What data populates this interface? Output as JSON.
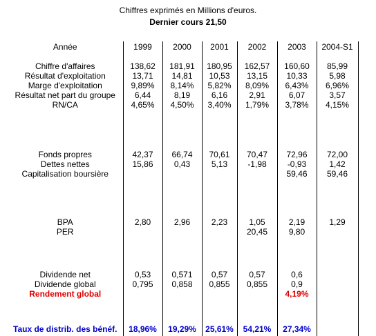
{
  "header": {
    "subtitle": "Chiffres exprimés en Millions d'euros.",
    "cours": "Dernier cours  21,50"
  },
  "table": {
    "columns": [
      "Année",
      "1999",
      "2000",
      "2001",
      "2002",
      "2003",
      "2004-S1"
    ],
    "groups": [
      {
        "labels": [
          "Chiffre d'affaires",
          "Résultat d'exploitation",
          "Marge d'exploitation",
          "Résultat net part du groupe",
          "RN/CA"
        ],
        "values": [
          [
            "138,62",
            "13,71",
            "9,89%",
            "6,44",
            "4,65%"
          ],
          [
            "181,91",
            "14,81",
            "8,14%",
            "8,19",
            "4,50%"
          ],
          [
            "180,95",
            "10,53",
            "5,82%",
            "6,16",
            "3,40%"
          ],
          [
            "162,57",
            "13,15",
            "8,09%",
            "2,91",
            "1,79%"
          ],
          [
            "160,60",
            "10,33",
            "6,43%",
            "6,07",
            "3,78%"
          ],
          [
            "85,99",
            "5,98",
            "6,96%",
            "3,57",
            "4,15%"
          ]
        ]
      },
      {
        "labels": [
          "Fonds propres",
          "Dettes nettes",
          "Capitalisation boursière"
        ],
        "values": [
          [
            "42,37",
            "15,86",
            ""
          ],
          [
            "66,74",
            "0,43",
            ""
          ],
          [
            "70,61",
            "5,13",
            ""
          ],
          [
            "70,47",
            "-1,98",
            ""
          ],
          [
            "72,96",
            "-0,93",
            "59,46"
          ],
          [
            "72,00",
            "1,42",
            "59,46"
          ]
        ]
      },
      {
        "labels": [
          "BPA",
          "PER"
        ],
        "values": [
          [
            "2,80",
            ""
          ],
          [
            "2,96",
            ""
          ],
          [
            "2,23",
            ""
          ],
          [
            "1,05",
            "20,45"
          ],
          [
            "2,19",
            "9,80"
          ],
          [
            "1,29",
            ""
          ]
        ]
      },
      {
        "labels": [
          "Dividende net",
          "Dividende global",
          "Rendement global"
        ],
        "values": [
          [
            "0,53",
            "0,795",
            ""
          ],
          [
            "0,571",
            "0,858",
            ""
          ],
          [
            "0,57",
            "0,855",
            ""
          ],
          [
            "0,57",
            "0,855",
            ""
          ],
          [
            "0,6",
            "0,9",
            "4,19%"
          ],
          [
            "",
            "",
            ""
          ]
        ]
      }
    ],
    "payout": {
      "label": "Taux de distrib. des bénéf.",
      "values": [
        "18,96%",
        "19,29%",
        "25,61%",
        "54,21%",
        "27,34%",
        ""
      ]
    }
  },
  "colors": {
    "rendement": "#e00000",
    "payout": "#0000cc",
    "lines": "#000000"
  }
}
